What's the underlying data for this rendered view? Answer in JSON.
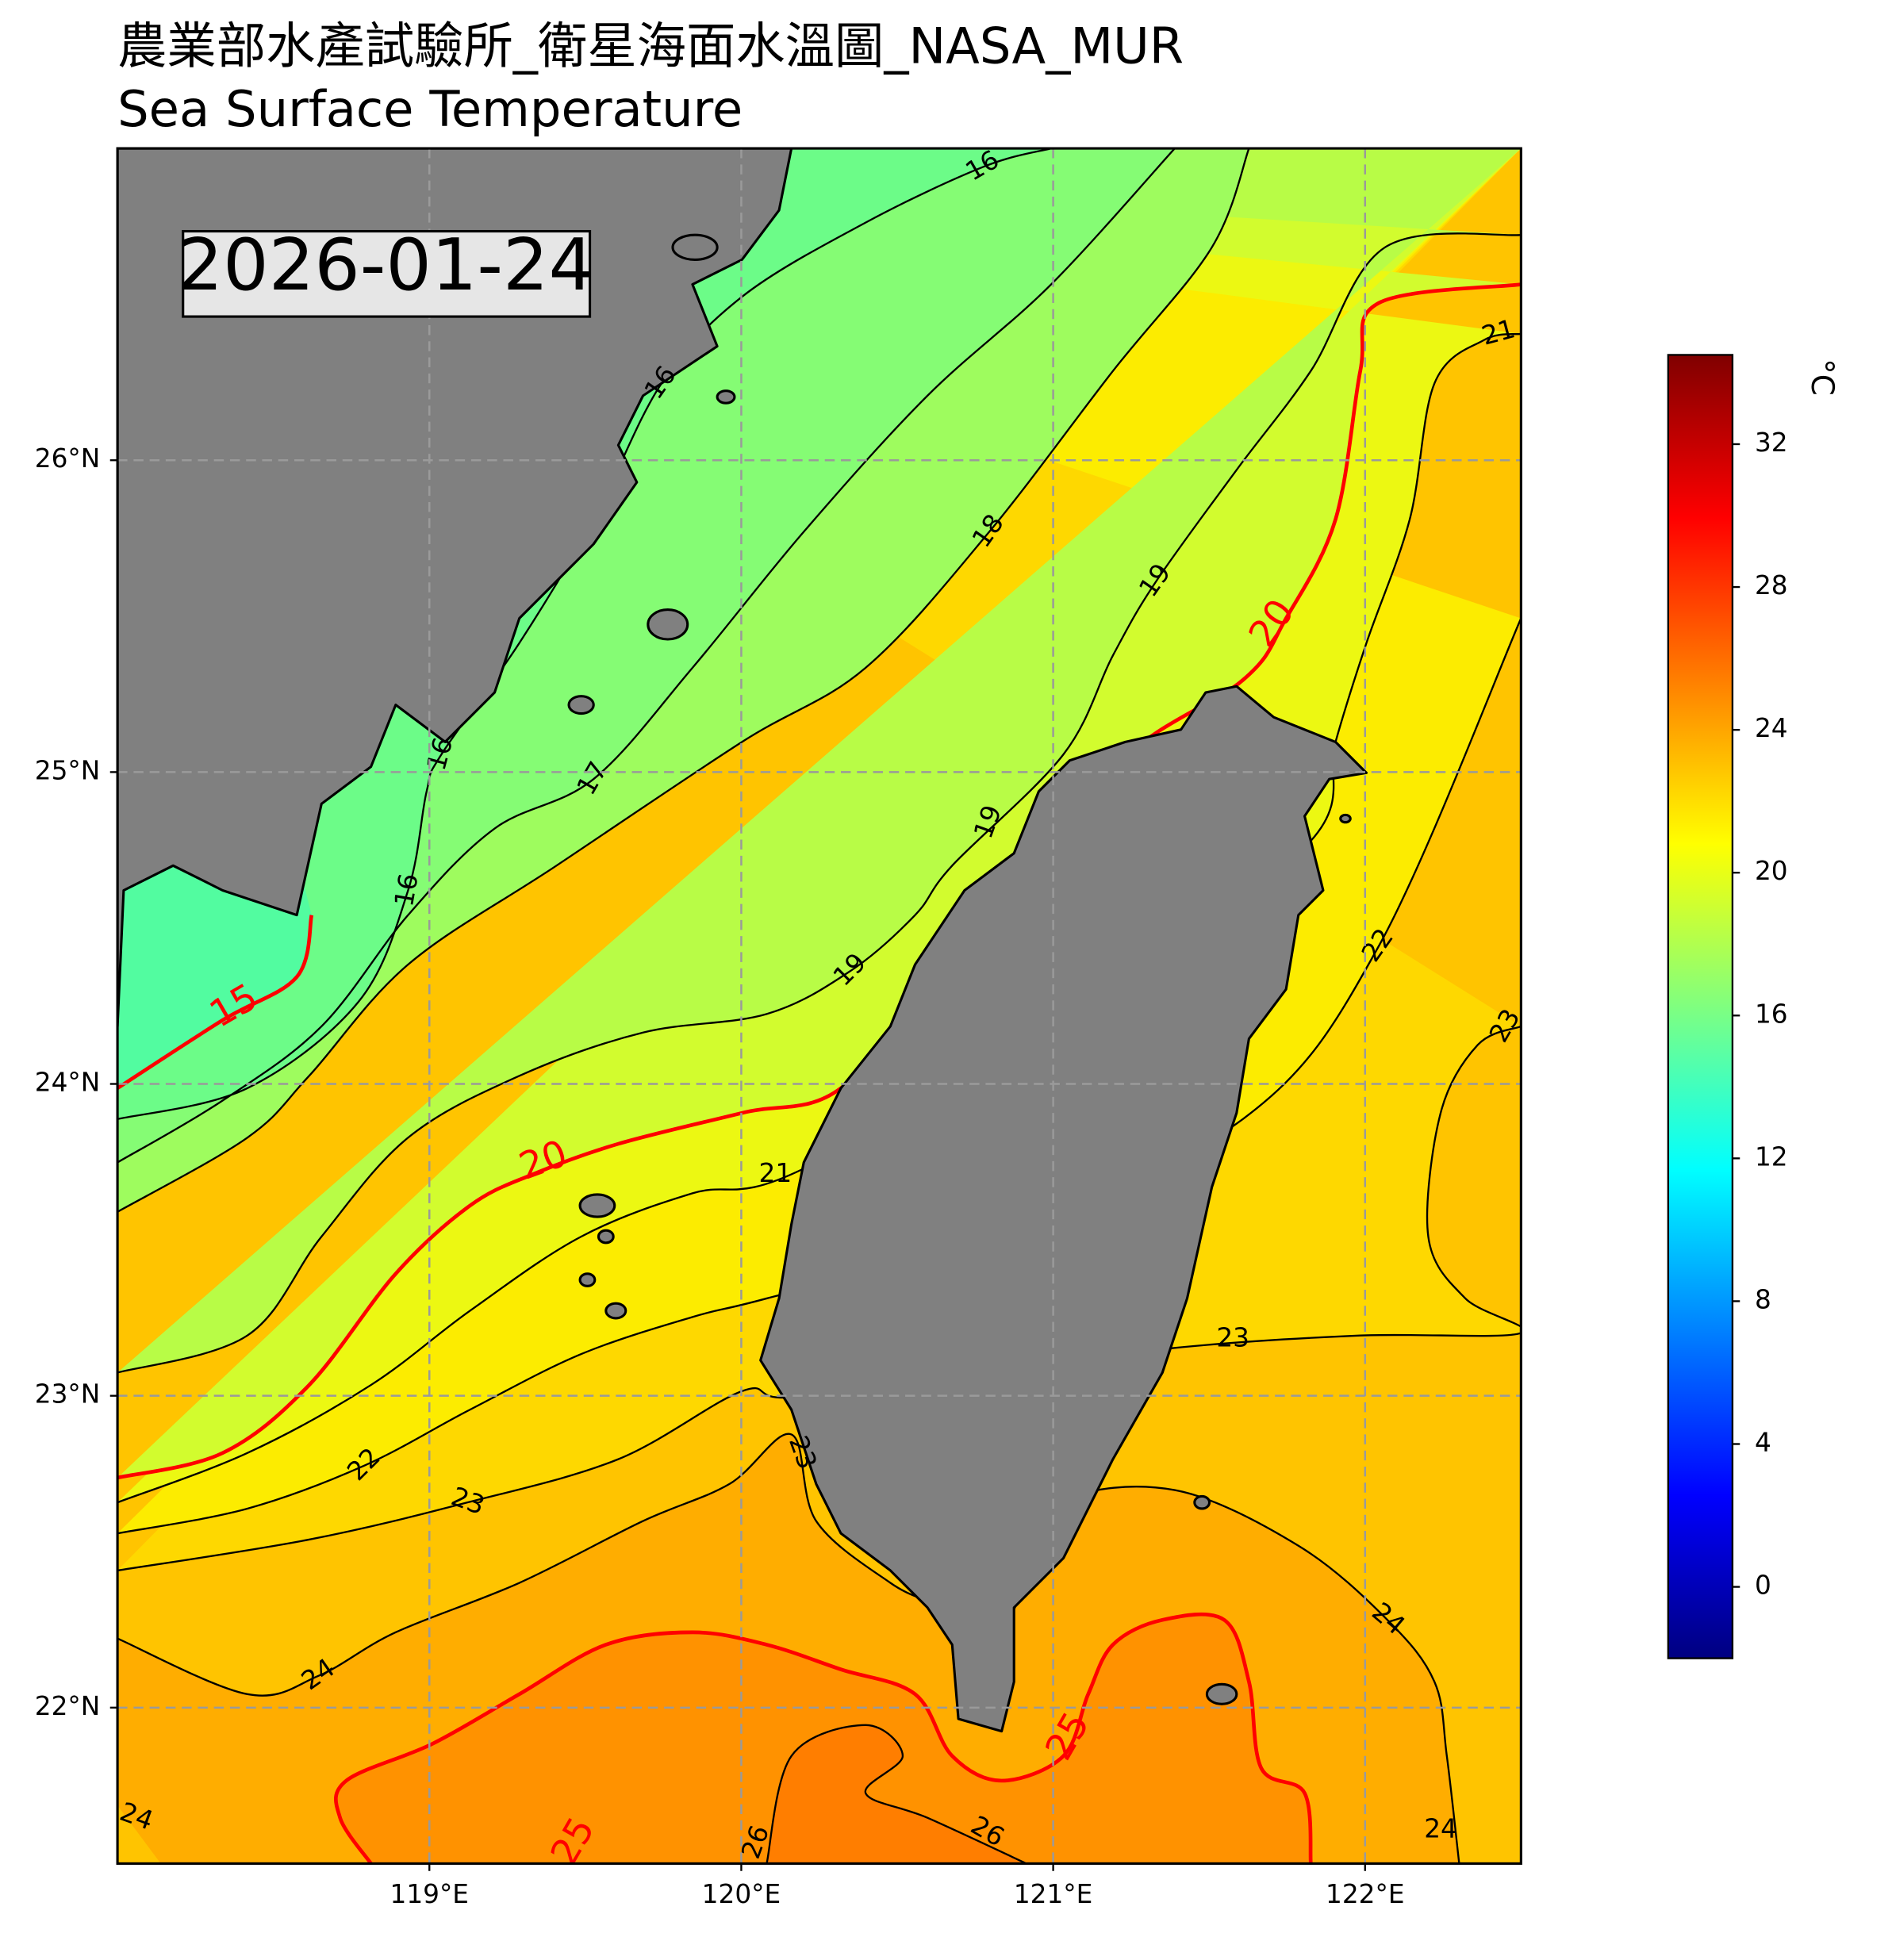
{
  "title": "農業部水產試驗所_衛星海面水溫圖_NASA_MUR",
  "subtitle": "Sea Surface Temperature",
  "date": "2026-01-24",
  "map": {
    "xlim": [
      118,
      122.5
    ],
    "ylim": [
      21.5,
      27
    ],
    "xticks": [
      {
        "value": 119,
        "label": "119°E"
      },
      {
        "value": 120,
        "label": "120°E"
      },
      {
        "value": 121,
        "label": "121°E"
      },
      {
        "value": 122,
        "label": "122°E"
      }
    ],
    "yticks": [
      {
        "value": 22,
        "label": "22°N"
      },
      {
        "value": 23,
        "label": "23°N"
      },
      {
        "value": 24,
        "label": "24°N"
      },
      {
        "value": 25,
        "label": "25°N"
      },
      {
        "value": 26,
        "label": "26°N"
      }
    ],
    "grid": true
  },
  "colorbar": {
    "label": "°C",
    "colormap": "jet",
    "clim": [
      -2,
      34.5
    ],
    "ticks": [
      0,
      4,
      8,
      12,
      16,
      20,
      24,
      28,
      32
    ]
  },
  "contour_labels": [
    16,
    16,
    16,
    16,
    17,
    18,
    19,
    19,
    19,
    20,
    20,
    15,
    21,
    21,
    22,
    22,
    23,
    23,
    23,
    23,
    24,
    24,
    24,
    24,
    25,
    25,
    26,
    26
  ]
}
